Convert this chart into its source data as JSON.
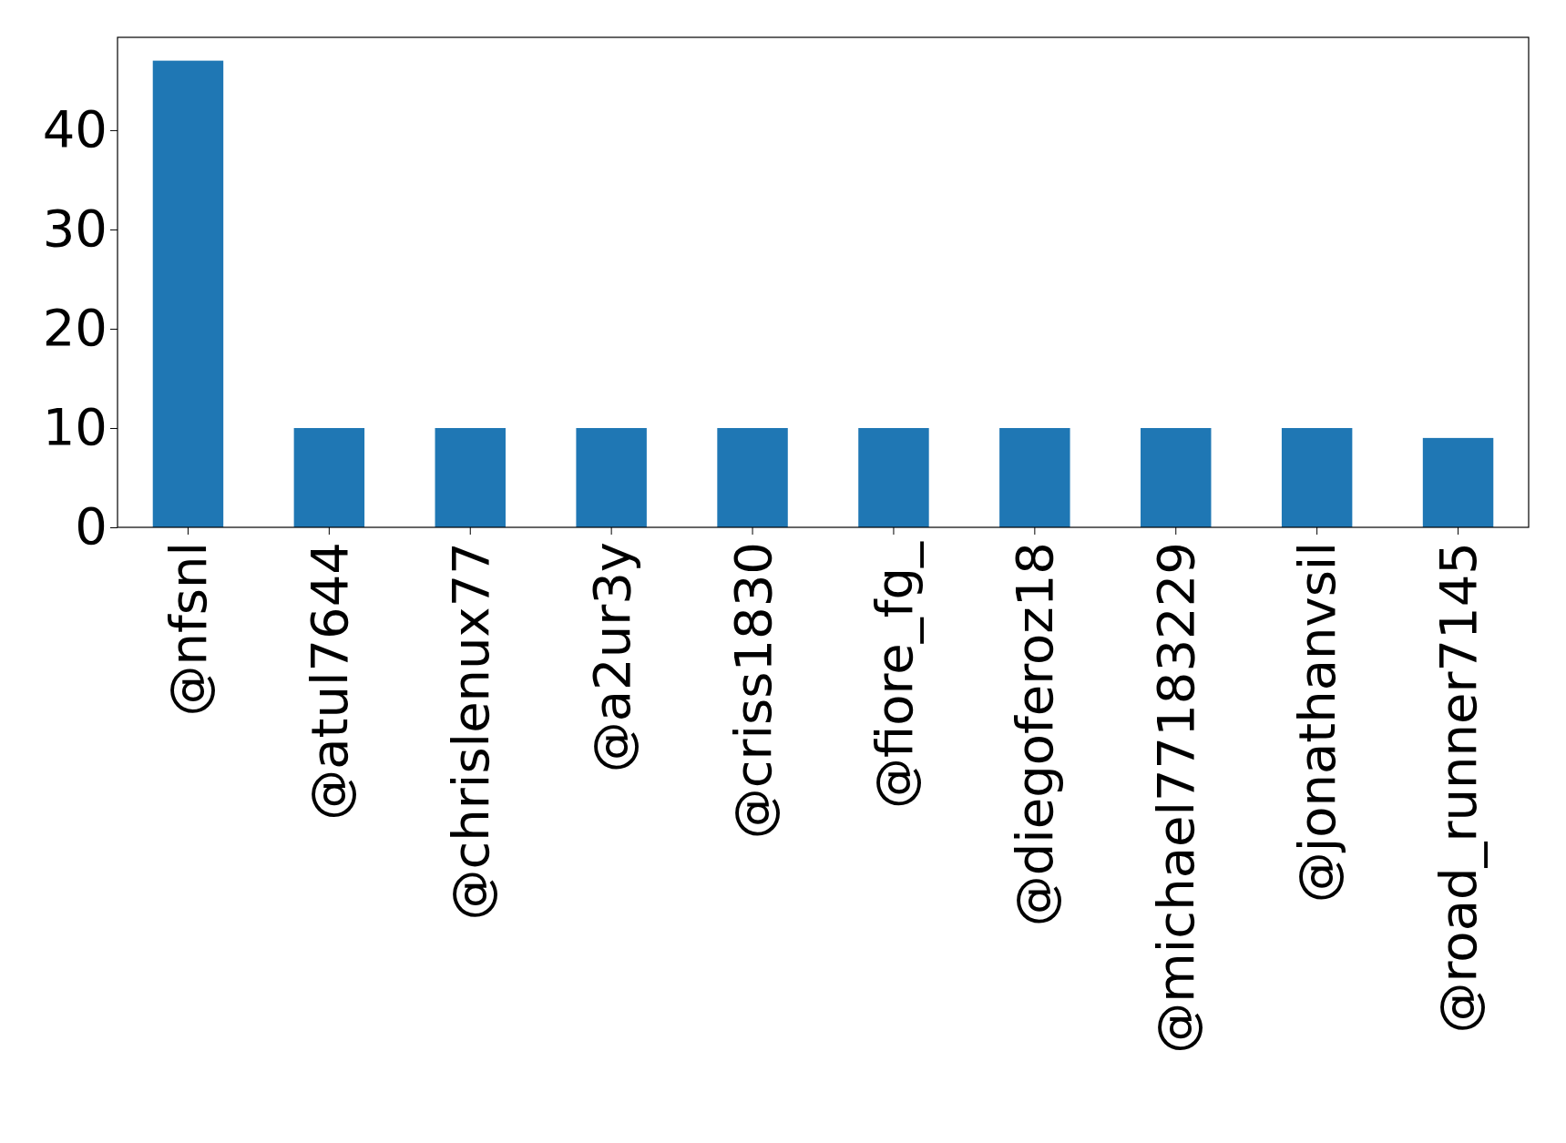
{
  "chart_data": {
    "type": "bar",
    "categories": [
      "@nfsnl",
      "@atul7644",
      "@chrislenux77",
      "@a2ur3y",
      "@criss1830",
      "@fiore_fg_",
      "@diegoferoz18",
      "@michael77183229",
      "@jonathanvsil",
      "@road_runner7145"
    ],
    "values": [
      47,
      10,
      10,
      10,
      10,
      10,
      10,
      10,
      10,
      9
    ],
    "color": "#1f77b4",
    "ylim": [
      0,
      49.35
    ],
    "yticks": [
      0,
      10,
      20,
      30,
      40
    ],
    "grid": false
  }
}
